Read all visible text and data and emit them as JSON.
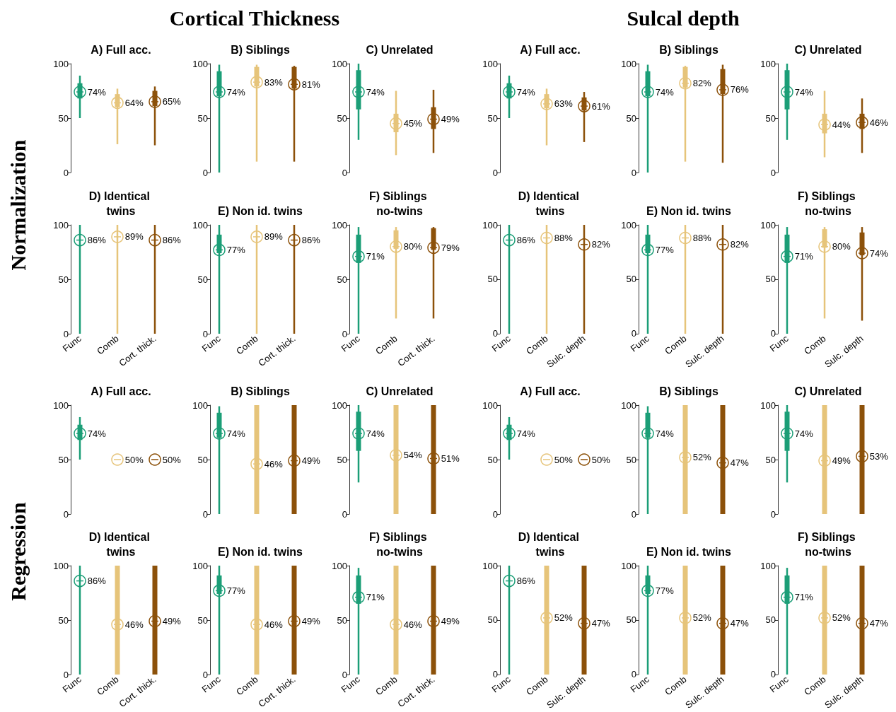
{
  "chart_data": [
    {
      "type": "other",
      "title": "Cortical Thickness"
    },
    {
      "type": "other",
      "title": "Sulcal depth"
    },
    {
      "type": "other",
      "title": "Normalization"
    },
    {
      "type": "other",
      "title": "Regression"
    },
    {
      "type": "box",
      "title": "A) Full acc.",
      "categories": [
        "Func",
        "Comb",
        "Cort. thick."
      ],
      "tick_labels": "y",
      "ylim": [
        0,
        100
      ],
      "yticks": [
        0,
        50,
        100
      ],
      "marker": "circle",
      "series": [
        {
          "type": "box",
          "colors": [
            "#1b9e77",
            "#e6c47a",
            "#8c510a"
          ],
          "boxes": [
            {
              "low": 50,
              "q1": 68,
              "median": 74,
              "q3": 82,
              "high": 89
            },
            {
              "low": 26,
              "q1": 60,
              "median": 64,
              "q3": 72,
              "high": 77
            },
            {
              "low": 25,
              "q1": 61,
              "median": 65,
              "q3": 75,
              "high": 79
            }
          ]
        },
        {
          "type": "scatter",
          "x": [
            "Func",
            "Comb",
            "Cort. thick."
          ],
          "colors": [
            "#1b9e77",
            "#e6c47a",
            "#8c510a"
          ],
          "values": [
            74,
            64,
            65
          ],
          "value_labels": [
            "74%",
            "64%",
            "65%"
          ]
        }
      ]
    },
    {
      "type": "box",
      "title": "B) Siblings",
      "categories": [
        "Func",
        "Comb",
        "Cort. thick."
      ],
      "tick_labels": "y",
      "ylim": [
        0,
        100
      ],
      "yticks": [
        0,
        50,
        100
      ],
      "marker": "circle",
      "series": [
        {
          "type": "box",
          "colors": [
            "#1b9e77",
            "#e6c47a",
            "#8c510a"
          ],
          "boxes": [
            {
              "low": 0,
              "q1": 70,
              "median": 74,
              "q3": 93,
              "high": 99
            },
            {
              "low": 10,
              "q1": 79,
              "median": 83,
              "q3": 97,
              "high": 99
            },
            {
              "low": 10,
              "q1": 77,
              "median": 81,
              "q3": 97,
              "high": 98
            }
          ]
        },
        {
          "type": "scatter",
          "x": [
            "Func",
            "Comb",
            "Cort. thick."
          ],
          "colors": [
            "#1b9e77",
            "#e6c47a",
            "#8c510a"
          ],
          "values": [
            74,
            83,
            81
          ],
          "value_labels": [
            "74%",
            "83%",
            "81%"
          ]
        }
      ]
    },
    {
      "type": "box",
      "title": "C) Unrelated",
      "categories": [
        "Func",
        "Comb",
        "Cort. thick."
      ],
      "tick_labels": "y",
      "ylim": [
        0,
        100
      ],
      "yticks": [
        0,
        50,
        100
      ],
      "marker": "circle",
      "series": [
        {
          "type": "box",
          "colors": [
            "#1b9e77",
            "#e6c47a",
            "#8c510a"
          ],
          "boxes": [
            {
              "low": 30,
              "q1": 58,
              "median": 74,
              "q3": 94,
              "high": 100
            },
            {
              "low": 16,
              "q1": 37,
              "median": 45,
              "q3": 54,
              "high": 75
            },
            {
              "low": 18,
              "q1": 40,
              "median": 49,
              "q3": 60,
              "high": 76
            }
          ]
        },
        {
          "type": "scatter",
          "x": [
            "Func",
            "Comb",
            "Cort. thick."
          ],
          "colors": [
            "#1b9e77",
            "#e6c47a",
            "#8c510a"
          ],
          "values": [
            74,
            45,
            49
          ],
          "value_labels": [
            "74%",
            "45%",
            "49%"
          ]
        }
      ]
    },
    {
      "type": "box",
      "title": "A) Full acc.",
      "categories": [
        "Func",
        "Comb",
        "Sulc. depth"
      ],
      "tick_labels": "y",
      "ylim": [
        0,
        100
      ],
      "yticks": [
        0,
        50,
        100
      ],
      "marker": "circle",
      "series": [
        {
          "type": "box",
          "colors": [
            "#1b9e77",
            "#e6c47a",
            "#8c510a"
          ],
          "boxes": [
            {
              "low": 50,
              "q1": 68,
              "median": 74,
              "q3": 82,
              "high": 89
            },
            {
              "low": 25,
              "q1": 59,
              "median": 63,
              "q3": 72,
              "high": 77
            },
            {
              "low": 28,
              "q1": 57,
              "median": 61,
              "q3": 69,
              "high": 74
            }
          ]
        },
        {
          "type": "scatter",
          "x": [
            "Func",
            "Comb",
            "Sulc. depth"
          ],
          "colors": [
            "#1b9e77",
            "#e6c47a",
            "#8c510a"
          ],
          "values": [
            74,
            63,
            61
          ],
          "value_labels": [
            "74%",
            "63%",
            "61%"
          ]
        }
      ]
    },
    {
      "type": "box",
      "title": "B) Siblings",
      "categories": [
        "Func",
        "Comb",
        "Sulc. depth"
      ],
      "tick_labels": "y",
      "ylim": [
        0,
        100
      ],
      "yticks": [
        0,
        50,
        100
      ],
      "marker": "circle",
      "series": [
        {
          "type": "box",
          "colors": [
            "#1b9e77",
            "#e6c47a",
            "#8c510a"
          ],
          "boxes": [
            {
              "low": 0,
              "q1": 70,
              "median": 74,
              "q3": 93,
              "high": 99
            },
            {
              "low": 10,
              "q1": 78,
              "median": 82,
              "q3": 97,
              "high": 98
            },
            {
              "low": 9,
              "q1": 72,
              "median": 76,
              "q3": 95,
              "high": 99
            }
          ]
        },
        {
          "type": "scatter",
          "x": [
            "Func",
            "Comb",
            "Sulc. depth"
          ],
          "colors": [
            "#1b9e77",
            "#e6c47a",
            "#8c510a"
          ],
          "values": [
            74,
            82,
            76
          ],
          "value_labels": [
            "74%",
            "82%",
            "76%"
          ]
        }
      ]
    },
    {
      "type": "box",
      "title": "C) Unrelated",
      "categories": [
        "Func",
        "Comb",
        "Sulc. depth"
      ],
      "tick_labels": "y",
      "ylim": [
        0,
        100
      ],
      "yticks": [
        0,
        50,
        100
      ],
      "marker": "circle",
      "series": [
        {
          "type": "box",
          "colors": [
            "#1b9e77",
            "#e6c47a",
            "#8c510a"
          ],
          "boxes": [
            {
              "low": 30,
              "q1": 58,
              "median": 74,
              "q3": 94,
              "high": 100
            },
            {
              "low": 14,
              "q1": 36,
              "median": 44,
              "q3": 54,
              "high": 75
            },
            {
              "low": 18,
              "q1": 40,
              "median": 46,
              "q3": 54,
              "high": 68
            }
          ]
        },
        {
          "type": "scatter",
          "x": [
            "Func",
            "Comb",
            "Sulc. depth"
          ],
          "colors": [
            "#1b9e77",
            "#e6c47a",
            "#8c510a"
          ],
          "values": [
            74,
            44,
            46
          ],
          "value_labels": [
            "74%",
            "44%",
            "46%"
          ]
        }
      ]
    },
    {
      "type": "box",
      "title": "D) Identical twins",
      "categories": [
        "Func",
        "Comb",
        "Cort. thick."
      ],
      "ylim": [
        0,
        100
      ],
      "yticks": [
        0,
        50,
        100
      ],
      "marker": "circle",
      "series": [
        {
          "type": "box",
          "colors": [
            "#1b9e77",
            "#e6c47a",
            "#8c510a"
          ],
          "boxes": [
            {
              "low": 0,
              "q1": 86,
              "median": 86,
              "q3": 86,
              "high": 100
            },
            {
              "low": 0,
              "q1": 89,
              "median": 89,
              "q3": 89,
              "high": 100
            },
            {
              "low": 0,
              "q1": 86,
              "median": 86,
              "q3": 86,
              "high": 100
            }
          ]
        },
        {
          "type": "scatter",
          "x": [
            "Func",
            "Comb",
            "Cort. thick."
          ],
          "colors": [
            "#1b9e77",
            "#e6c47a",
            "#8c510a"
          ],
          "values": [
            86,
            89,
            86
          ],
          "value_labels": [
            "86%",
            "89%",
            "86%"
          ]
        }
      ]
    },
    {
      "type": "box",
      "title": "E) Non id. twins",
      "categories": [
        "Func",
        "Comb",
        "Cort. thick."
      ],
      "ylim": [
        0,
        100
      ],
      "yticks": [
        0,
        50,
        100
      ],
      "marker": "circle",
      "series": [
        {
          "type": "box",
          "colors": [
            "#1b9e77",
            "#e6c47a",
            "#8c510a"
          ],
          "boxes": [
            {
              "low": 0,
              "q1": 74,
              "median": 77,
              "q3": 91,
              "high": 100
            },
            {
              "low": 0,
              "q1": 89,
              "median": 89,
              "q3": 89,
              "high": 100
            },
            {
              "low": 0,
              "q1": 86,
              "median": 86,
              "q3": 86,
              "high": 100
            }
          ]
        },
        {
          "type": "scatter",
          "x": [
            "Func",
            "Comb",
            "Cort. thick."
          ],
          "colors": [
            "#1b9e77",
            "#e6c47a",
            "#8c510a"
          ],
          "values": [
            77,
            89,
            86
          ],
          "value_labels": [
            "77%",
            "89%",
            "86%"
          ]
        }
      ]
    },
    {
      "type": "box",
      "title": "F) Siblings no-twins",
      "categories": [
        "Func",
        "Comb",
        "Cort. thick."
      ],
      "ylim": [
        0,
        100
      ],
      "yticks": [
        0,
        50,
        100
      ],
      "marker": "circle",
      "series": [
        {
          "type": "box",
          "colors": [
            "#1b9e77",
            "#e6c47a",
            "#8c510a"
          ],
          "boxes": [
            {
              "low": 0,
              "q1": 65,
              "median": 71,
              "q3": 91,
              "high": 98
            },
            {
              "low": 14,
              "q1": 78,
              "median": 80,
              "q3": 95,
              "high": 98
            },
            {
              "low": 14,
              "q1": 77,
              "median": 79,
              "q3": 97,
              "high": 98
            }
          ]
        },
        {
          "type": "scatter",
          "x": [
            "Func",
            "Comb",
            "Cort. thick."
          ],
          "colors": [
            "#1b9e77",
            "#e6c47a",
            "#8c510a"
          ],
          "values": [
            71,
            80,
            79
          ],
          "value_labels": [
            "71%",
            "80%",
            "79%"
          ]
        }
      ]
    },
    {
      "type": "box",
      "title": "D) Identical twins",
      "categories": [
        "Func",
        "Comb",
        "Sulc. depth"
      ],
      "ylim": [
        0,
        100
      ],
      "yticks": [
        0,
        50,
        100
      ],
      "marker": "circle",
      "series": [
        {
          "type": "box",
          "colors": [
            "#1b9e77",
            "#e6c47a",
            "#8c510a"
          ],
          "boxes": [
            {
              "low": 0,
              "q1": 86,
              "median": 86,
              "q3": 86,
              "high": 100
            },
            {
              "low": 0,
              "q1": 88,
              "median": 88,
              "q3": 88,
              "high": 100
            },
            {
              "low": 0,
              "q1": 82,
              "median": 82,
              "q3": 82,
              "high": 100
            }
          ]
        },
        {
          "type": "scatter",
          "x": [
            "Func",
            "Comb",
            "Sulc. depth"
          ],
          "colors": [
            "#1b9e77",
            "#e6c47a",
            "#8c510a"
          ],
          "values": [
            86,
            88,
            82
          ],
          "value_labels": [
            "86%",
            "88%",
            "82%"
          ]
        }
      ]
    },
    {
      "type": "box",
      "title": "E) Non id. twins",
      "categories": [
        "Func",
        "Comb",
        "Sulc. depth"
      ],
      "ylim": [
        0,
        100
      ],
      "yticks": [
        0,
        50,
        100
      ],
      "marker": "circle",
      "series": [
        {
          "type": "box",
          "colors": [
            "#1b9e77",
            "#e6c47a",
            "#8c510a"
          ],
          "boxes": [
            {
              "low": 0,
              "q1": 74,
              "median": 77,
              "q3": 91,
              "high": 100
            },
            {
              "low": 0,
              "q1": 88,
              "median": 88,
              "q3": 88,
              "high": 100
            },
            {
              "low": 0,
              "q1": 82,
              "median": 82,
              "q3": 82,
              "high": 100
            }
          ]
        },
        {
          "type": "scatter",
          "x": [
            "Func",
            "Comb",
            "Sulc. depth"
          ],
          "colors": [
            "#1b9e77",
            "#e6c47a",
            "#8c510a"
          ],
          "values": [
            77,
            88,
            82
          ],
          "value_labels": [
            "77%",
            "88%",
            "82%"
          ]
        }
      ]
    },
    {
      "type": "box",
      "title": "F) Siblings no-twins",
      "categories": [
        "Func",
        "Comb",
        "Sulc. depth"
      ],
      "ylim": [
        0,
        100
      ],
      "yticks": [
        0,
        50,
        100
      ],
      "marker": "circle",
      "series": [
        {
          "type": "box",
          "colors": [
            "#1b9e77",
            "#e6c47a",
            "#8c510a"
          ],
          "boxes": [
            {
              "low": 0,
              "q1": 65,
              "median": 71,
              "q3": 91,
              "high": 98
            },
            {
              "low": 14,
              "q1": 79,
              "median": 80,
              "q3": 96,
              "high": 98
            },
            {
              "low": 12,
              "q1": 72,
              "median": 74,
              "q3": 93,
              "high": 98
            }
          ]
        },
        {
          "type": "scatter",
          "x": [
            "Func",
            "Comb",
            "Sulc. depth"
          ],
          "colors": [
            "#1b9e77",
            "#e6c47a",
            "#8c510a"
          ],
          "values": [
            71,
            80,
            74
          ],
          "value_labels": [
            "71%",
            "80%",
            "74%"
          ]
        }
      ]
    },
    {
      "type": "box",
      "title": "A) Full acc.",
      "categories": [
        "Func",
        "Comb",
        "Cort. thick."
      ],
      "tick_labels": "y",
      "ylim": [
        0,
        100
      ],
      "yticks": [
        0,
        50,
        100
      ],
      "marker": "circle",
      "series": [
        {
          "type": "box",
          "colors": [
            "#1b9e77",
            "#e6c47a",
            "#8c510a"
          ],
          "boxes": [
            {
              "low": 50,
              "q1": 68,
              "median": 74,
              "q3": 82,
              "high": 89
            },
            {
              "low": 50,
              "q1": 50,
              "median": 50,
              "q3": 50,
              "high": 50
            },
            {
              "low": 50,
              "q1": 50,
              "median": 50,
              "q3": 50,
              "high": 50
            }
          ]
        },
        {
          "type": "scatter",
          "x": [
            "Func",
            "Comb",
            "Cort. thick."
          ],
          "colors": [
            "#1b9e77",
            "#e6c47a",
            "#8c510a"
          ],
          "values": [
            74,
            50,
            50
          ],
          "value_labels": [
            "74%",
            "50%",
            "50%"
          ]
        }
      ]
    },
    {
      "type": "box",
      "title": "B) Siblings",
      "categories": [
        "Func",
        "Comb",
        "Cort. thick."
      ],
      "tick_labels": "y",
      "ylim": [
        0,
        100
      ],
      "yticks": [
        0,
        50,
        100
      ],
      "marker": "circle",
      "series": [
        {
          "type": "box",
          "colors": [
            "#1b9e77",
            "#e6c47a",
            "#8c510a"
          ],
          "boxes": [
            {
              "low": 0,
              "q1": 70,
              "median": 74,
              "q3": 93,
              "high": 99
            },
            {
              "low": 0,
              "q1": 0,
              "median": 46,
              "q3": 100,
              "high": 100
            },
            {
              "low": 0,
              "q1": 0,
              "median": 49,
              "q3": 100,
              "high": 100
            }
          ]
        },
        {
          "type": "scatter",
          "x": [
            "Func",
            "Comb",
            "Cort. thick."
          ],
          "colors": [
            "#1b9e77",
            "#e6c47a",
            "#8c510a"
          ],
          "values": [
            74,
            46,
            49
          ],
          "value_labels": [
            "74%",
            "46%",
            "49%"
          ]
        }
      ]
    },
    {
      "type": "box",
      "title": "C) Unrelated",
      "categories": [
        "Func",
        "Comb",
        "Cort. thick."
      ],
      "tick_labels": "y",
      "ylim": [
        0,
        100
      ],
      "yticks": [
        0,
        50,
        100
      ],
      "marker": "circle",
      "series": [
        {
          "type": "box",
          "colors": [
            "#1b9e77",
            "#e6c47a",
            "#8c510a"
          ],
          "boxes": [
            {
              "low": 29,
              "q1": 58,
              "median": 74,
              "q3": 94,
              "high": 100
            },
            {
              "low": 0,
              "q1": 0,
              "median": 54,
              "q3": 100,
              "high": 100
            },
            {
              "low": 0,
              "q1": 0,
              "median": 51,
              "q3": 100,
              "high": 100
            }
          ]
        },
        {
          "type": "scatter",
          "x": [
            "Func",
            "Comb",
            "Cort. thick."
          ],
          "colors": [
            "#1b9e77",
            "#e6c47a",
            "#8c510a"
          ],
          "values": [
            74,
            54,
            51
          ],
          "value_labels": [
            "74%",
            "54%",
            "51%"
          ]
        }
      ]
    },
    {
      "type": "box",
      "title": "A) Full acc.",
      "categories": [
        "Func",
        "Comb",
        "Sulc. depth"
      ],
      "tick_labels": "y",
      "ylim": [
        0,
        100
      ],
      "yticks": [
        0,
        50,
        100
      ],
      "marker": "circle",
      "series": [
        {
          "type": "box",
          "colors": [
            "#1b9e77",
            "#e6c47a",
            "#8c510a"
          ],
          "boxes": [
            {
              "low": 50,
              "q1": 68,
              "median": 74,
              "q3": 82,
              "high": 89
            },
            {
              "low": 50,
              "q1": 50,
              "median": 50,
              "q3": 50,
              "high": 50
            },
            {
              "low": 50,
              "q1": 50,
              "median": 50,
              "q3": 50,
              "high": 50
            }
          ]
        },
        {
          "type": "scatter",
          "x": [
            "Func",
            "Comb",
            "Sulc. depth"
          ],
          "colors": [
            "#1b9e77",
            "#e6c47a",
            "#8c510a"
          ],
          "values": [
            74,
            50,
            50
          ],
          "value_labels": [
            "74%",
            "50%",
            "50%"
          ]
        }
      ]
    },
    {
      "type": "box",
      "title": "B) Siblings",
      "categories": [
        "Func",
        "Comb",
        "Sulc. depth"
      ],
      "tick_labels": "y",
      "ylim": [
        0,
        100
      ],
      "yticks": [
        0,
        50,
        100
      ],
      "marker": "circle",
      "series": [
        {
          "type": "box",
          "colors": [
            "#1b9e77",
            "#e6c47a",
            "#8c510a"
          ],
          "boxes": [
            {
              "low": 0,
              "q1": 70,
              "median": 74,
              "q3": 93,
              "high": 99
            },
            {
              "low": 0,
              "q1": 0,
              "median": 52,
              "q3": 100,
              "high": 100
            },
            {
              "low": 0,
              "q1": 0,
              "median": 47,
              "q3": 100,
              "high": 100
            }
          ]
        },
        {
          "type": "scatter",
          "x": [
            "Func",
            "Comb",
            "Sulc. depth"
          ],
          "colors": [
            "#1b9e77",
            "#e6c47a",
            "#8c510a"
          ],
          "values": [
            74,
            52,
            47
          ],
          "value_labels": [
            "74%",
            "52%",
            "47%"
          ]
        }
      ]
    },
    {
      "type": "box",
      "title": "C) Unrelated",
      "categories": [
        "Func",
        "Comb",
        "Sulc. depth"
      ],
      "tick_labels": "y",
      "ylim": [
        0,
        100
      ],
      "yticks": [
        0,
        50,
        100
      ],
      "marker": "circle",
      "series": [
        {
          "type": "box",
          "colors": [
            "#1b9e77",
            "#e6c47a",
            "#8c510a"
          ],
          "boxes": [
            {
              "low": 29,
              "q1": 58,
              "median": 74,
              "q3": 94,
              "high": 100
            },
            {
              "low": 0,
              "q1": 0,
              "median": 49,
              "q3": 100,
              "high": 100
            },
            {
              "low": 0,
              "q1": 0,
              "median": 53,
              "q3": 100,
              "high": 100
            }
          ]
        },
        {
          "type": "scatter",
          "x": [
            "Func",
            "Comb",
            "Sulc. depth"
          ],
          "colors": [
            "#1b9e77",
            "#e6c47a",
            "#8c510a"
          ],
          "values": [
            74,
            49,
            53
          ],
          "value_labels": [
            "74%",
            "49%",
            "53%"
          ]
        }
      ]
    },
    {
      "type": "box",
      "title": "D) Identical twins",
      "categories": [
        "Func",
        "Comb",
        "Cort. thick."
      ],
      "ylim": [
        0,
        100
      ],
      "yticks": [
        0,
        50,
        100
      ],
      "marker": "circle",
      "series": [
        {
          "type": "box",
          "colors": [
            "#1b9e77",
            "#e6c47a",
            "#8c510a"
          ],
          "boxes": [
            {
              "low": 0,
              "q1": 86,
              "median": 86,
              "q3": 86,
              "high": 100
            },
            {
              "low": 0,
              "q1": 0,
              "median": 46,
              "q3": 100,
              "high": 100
            },
            {
              "low": 0,
              "q1": 0,
              "median": 49,
              "q3": 100,
              "high": 100
            }
          ]
        },
        {
          "type": "scatter",
          "x": [
            "Func",
            "Comb",
            "Cort. thick."
          ],
          "colors": [
            "#1b9e77",
            "#e6c47a",
            "#8c510a"
          ],
          "values": [
            86,
            46,
            49
          ],
          "value_labels": [
            "86%",
            "46%",
            "49%"
          ]
        }
      ]
    },
    {
      "type": "box",
      "title": "E) Non id. twins",
      "categories": [
        "Func",
        "Comb",
        "Cort. thick."
      ],
      "ylim": [
        0,
        100
      ],
      "yticks": [
        0,
        50,
        100
      ],
      "marker": "circle",
      "series": [
        {
          "type": "box",
          "colors": [
            "#1b9e77",
            "#e6c47a",
            "#8c510a"
          ],
          "boxes": [
            {
              "low": 0,
              "q1": 74,
              "median": 77,
              "q3": 91,
              "high": 100
            },
            {
              "low": 0,
              "q1": 0,
              "median": 46,
              "q3": 100,
              "high": 100
            },
            {
              "low": 0,
              "q1": 0,
              "median": 49,
              "q3": 100,
              "high": 100
            }
          ]
        },
        {
          "type": "scatter",
          "x": [
            "Func",
            "Comb",
            "Cort. thick."
          ],
          "colors": [
            "#1b9e77",
            "#e6c47a",
            "#8c510a"
          ],
          "values": [
            77,
            46,
            49
          ],
          "value_labels": [
            "77%",
            "46%",
            "49%"
          ]
        }
      ]
    },
    {
      "type": "box",
      "title": "F) Siblings no-twins",
      "categories": [
        "Func",
        "Comb",
        "Cort. thick."
      ],
      "ylim": [
        0,
        100
      ],
      "yticks": [
        0,
        50,
        100
      ],
      "marker": "circle",
      "series": [
        {
          "type": "box",
          "colors": [
            "#1b9e77",
            "#e6c47a",
            "#8c510a"
          ],
          "boxes": [
            {
              "low": 0,
              "q1": 65,
              "median": 71,
              "q3": 91,
              "high": 98
            },
            {
              "low": 0,
              "q1": 0,
              "median": 46,
              "q3": 100,
              "high": 100
            },
            {
              "low": 0,
              "q1": 0,
              "median": 49,
              "q3": 100,
              "high": 100
            }
          ]
        },
        {
          "type": "scatter",
          "x": [
            "Func",
            "Comb",
            "Cort. thick."
          ],
          "colors": [
            "#1b9e77",
            "#e6c47a",
            "#8c510a"
          ],
          "values": [
            71,
            46,
            49
          ],
          "value_labels": [
            "71%",
            "46%",
            "49%"
          ]
        }
      ]
    },
    {
      "type": "box",
      "title": "D) Identical twins",
      "categories": [
        "Func",
        "Comb",
        "Sulc. depth"
      ],
      "ylim": [
        0,
        100
      ],
      "yticks": [
        0,
        50,
        100
      ],
      "marker": "circle",
      "series": [
        {
          "type": "box",
          "colors": [
            "#1b9e77",
            "#e6c47a",
            "#8c510a"
          ],
          "boxes": [
            {
              "low": 0,
              "q1": 86,
              "median": 86,
              "q3": 86,
              "high": 100
            },
            {
              "low": 0,
              "q1": 0,
              "median": 52,
              "q3": 100,
              "high": 100
            },
            {
              "low": 0,
              "q1": 0,
              "median": 47,
              "q3": 100,
              "high": 100
            }
          ]
        },
        {
          "type": "scatter",
          "x": [
            "Func",
            "Comb",
            "Sulc. depth"
          ],
          "colors": [
            "#1b9e77",
            "#e6c47a",
            "#8c510a"
          ],
          "values": [
            86,
            52,
            47
          ],
          "value_labels": [
            "86%",
            "52%",
            "47%"
          ]
        }
      ]
    },
    {
      "type": "box",
      "title": "E) Non id. twins",
      "categories": [
        "Func",
        "Comb",
        "Sulc. depth"
      ],
      "ylim": [
        0,
        100
      ],
      "yticks": [
        0,
        50,
        100
      ],
      "marker": "circle",
      "series": [
        {
          "type": "box",
          "colors": [
            "#1b9e77",
            "#e6c47a",
            "#8c510a"
          ],
          "boxes": [
            {
              "low": 0,
              "q1": 74,
              "median": 77,
              "q3": 91,
              "high": 100
            },
            {
              "low": 0,
              "q1": 0,
              "median": 52,
              "q3": 100,
              "high": 100
            },
            {
              "low": 0,
              "q1": 0,
              "median": 47,
              "q3": 100,
              "high": 100
            }
          ]
        },
        {
          "type": "scatter",
          "x": [
            "Func",
            "Comb",
            "Sulc. depth"
          ],
          "colors": [
            "#1b9e77",
            "#e6c47a",
            "#8c510a"
          ],
          "values": [
            77,
            52,
            47
          ],
          "value_labels": [
            "77%",
            "52%",
            "47%"
          ]
        }
      ]
    },
    {
      "type": "box",
      "title": "F) Siblings no-twins",
      "categories": [
        "Func",
        "Comb",
        "Sulc. depth"
      ],
      "ylim": [
        0,
        100
      ],
      "yticks": [
        0,
        50,
        100
      ],
      "marker": "circle",
      "series": [
        {
          "type": "box",
          "colors": [
            "#1b9e77",
            "#e6c47a",
            "#8c510a"
          ],
          "boxes": [
            {
              "low": 0,
              "q1": 65,
              "median": 71,
              "q3": 91,
              "high": 98
            },
            {
              "low": 0,
              "q1": 0,
              "median": 52,
              "q3": 100,
              "high": 100
            },
            {
              "low": 0,
              "q1": 0,
              "median": 47,
              "q3": 100,
              "high": 100
            }
          ]
        },
        {
          "type": "scatter",
          "x": [
            "Func",
            "Comb",
            "Sulc. depth"
          ],
          "colors": [
            "#1b9e77",
            "#e6c47a",
            "#8c510a"
          ],
          "values": [
            71,
            52,
            47
          ],
          "value_labels": [
            "71%",
            "52%",
            "47%"
          ]
        }
      ]
    }
  ]
}
